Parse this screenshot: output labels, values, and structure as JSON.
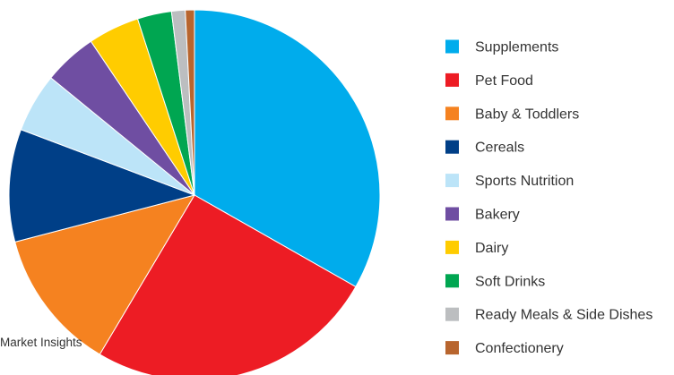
{
  "chart_data": {
    "type": "pie",
    "title": "",
    "source": "Market Insights",
    "start_angle_deg": 0,
    "direction": "clockwise",
    "legend_position": "right",
    "slices": [
      {
        "label": "Supplements",
        "value": 33.5,
        "color": "#00ACEC"
      },
      {
        "label": "Pet Food",
        "value": 25.5,
        "color": "#ED1C24"
      },
      {
        "label": "Baby & Toddlers",
        "value": 12.5,
        "color": "#F58220"
      },
      {
        "label": "Cereals",
        "value": 9.9,
        "color": "#003F87"
      },
      {
        "label": "Sports Nutrition",
        "value": 5.2,
        "color": "#BCE4F8"
      },
      {
        "label": "Bakery",
        "value": 4.7,
        "color": "#6F4EA2"
      },
      {
        "label": "Dairy",
        "value": 4.5,
        "color": "#FFCC00"
      },
      {
        "label": "Soft Drinks",
        "value": 3.0,
        "color": "#00A651"
      },
      {
        "label": "Ready Meals & Side Dishes",
        "value": 1.2,
        "color": "#BCBEC0"
      },
      {
        "label": "Confectionery",
        "value": 0.8,
        "color": "#B8652E"
      }
    ]
  }
}
